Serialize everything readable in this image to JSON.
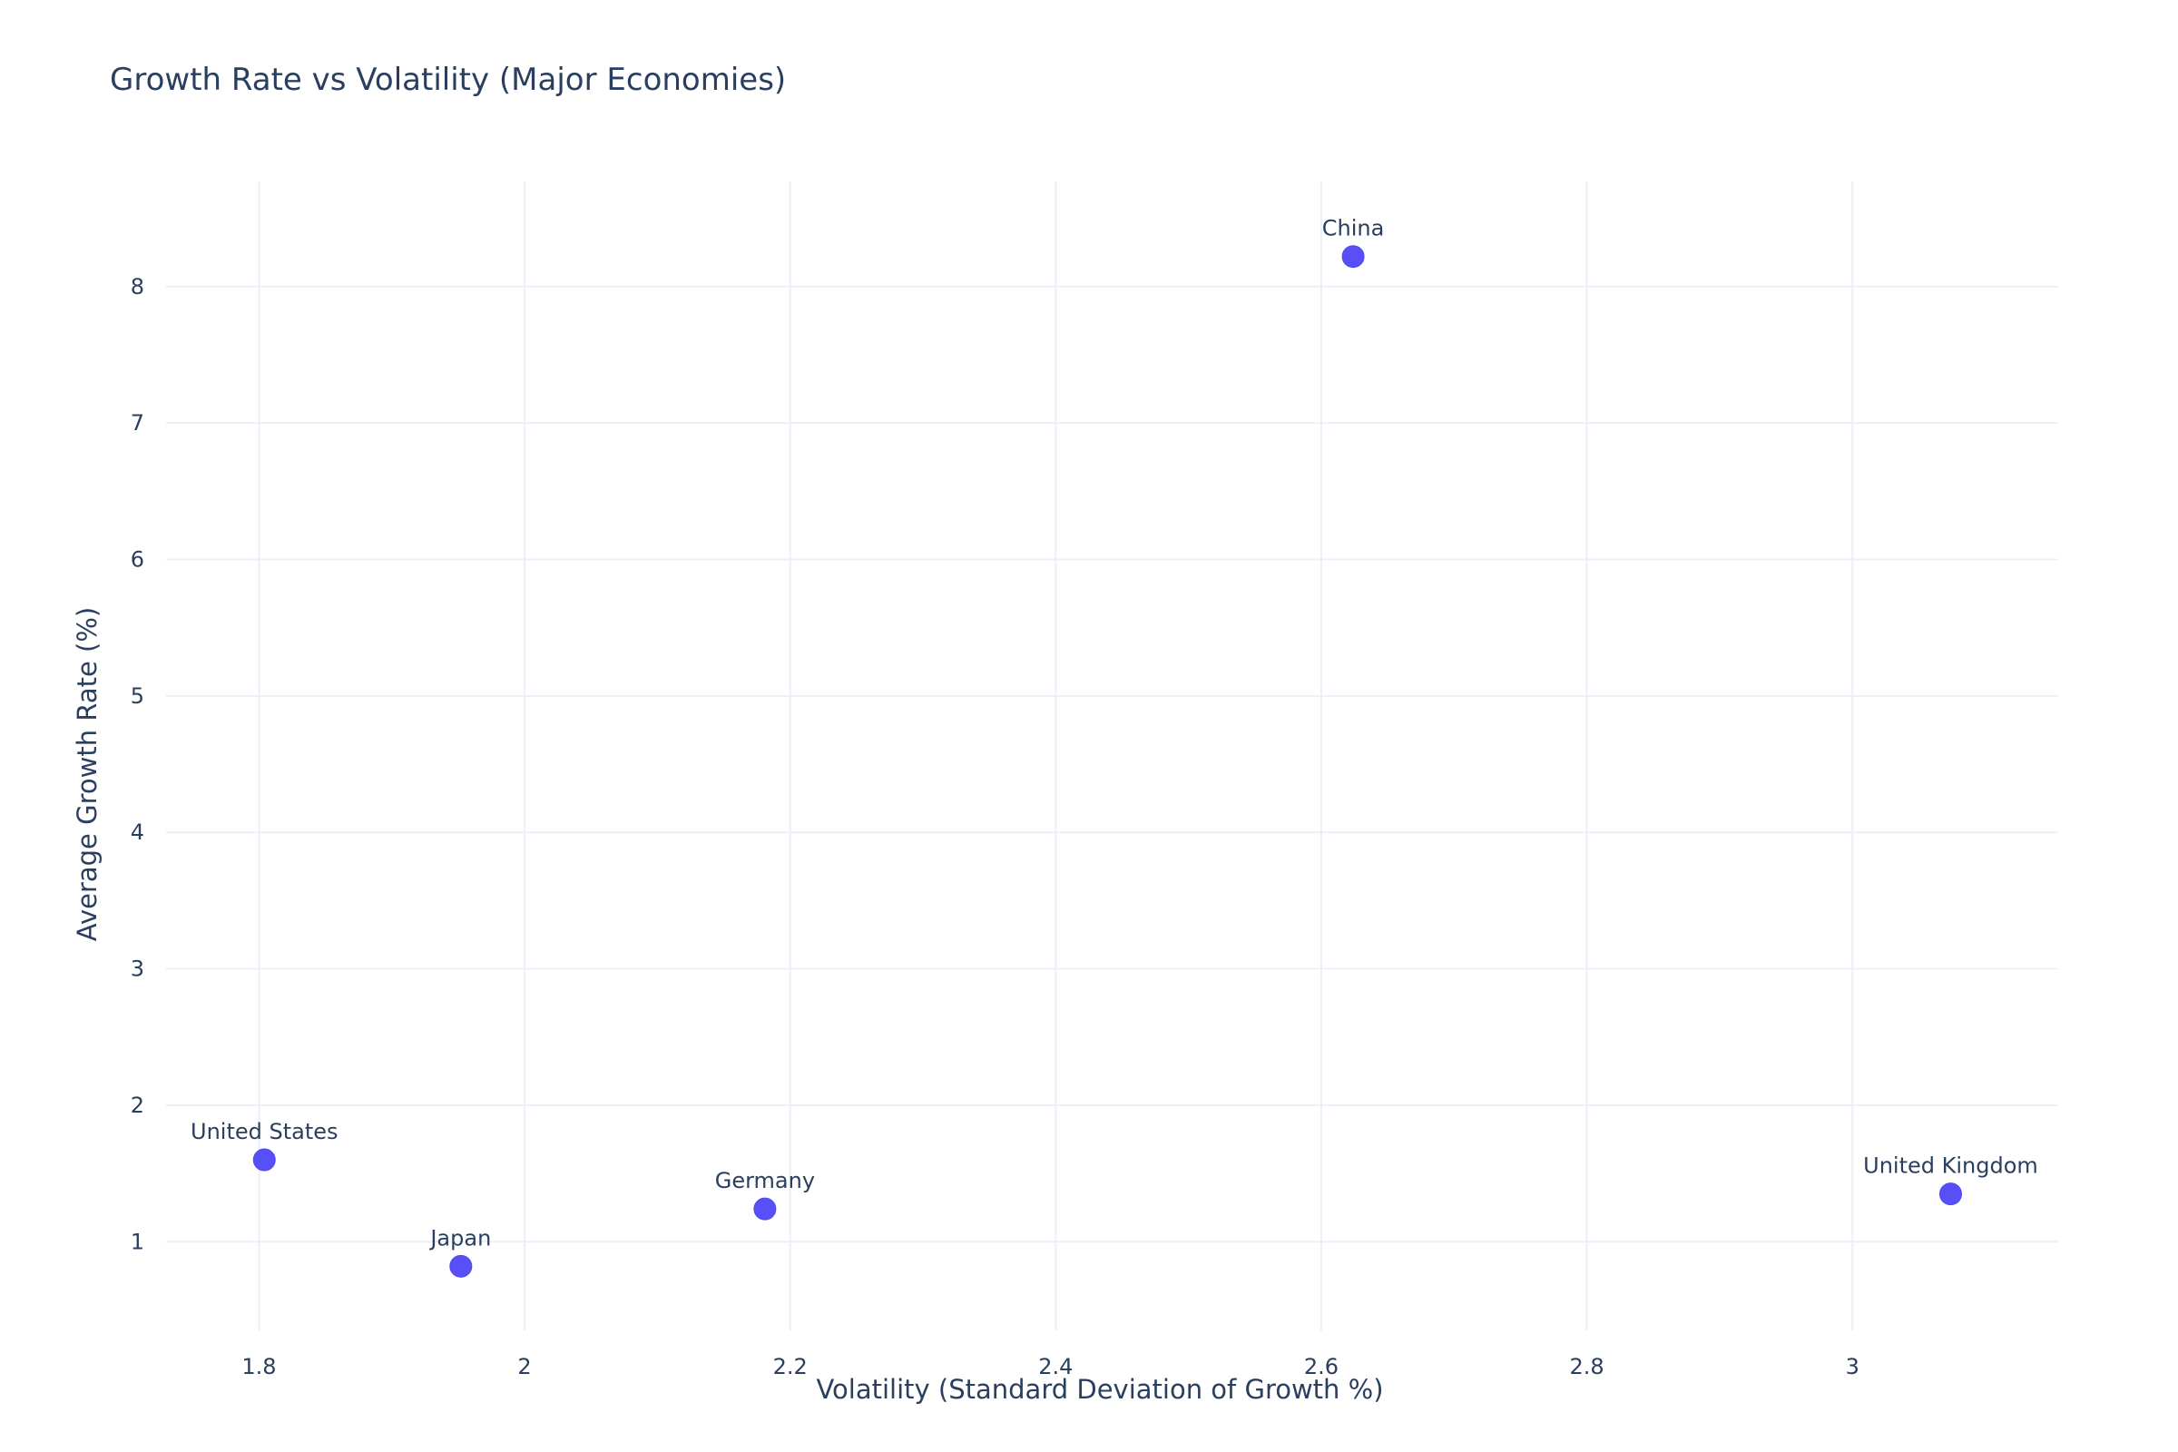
{
  "chart_data": {
    "type": "scatter",
    "title": "Growth Rate vs Volatility (Major Economies)",
    "xlabel": "Volatility (Standard Deviation of Growth %)",
    "ylabel": "Average Growth Rate (%)",
    "xlim": [
      1.73,
      3.155
    ],
    "ylim": [
      0.35,
      8.77
    ],
    "x_ticks": [
      1.8,
      2,
      2.2,
      2.4,
      2.6,
      2.8,
      3
    ],
    "x_tick_labels": [
      "1.8",
      "2",
      "2.2",
      "2.4",
      "2.6",
      "2.8",
      "3"
    ],
    "y_ticks": [
      1,
      2,
      3,
      4,
      5,
      6,
      7,
      8
    ],
    "y_tick_labels": [
      "1",
      "2",
      "3",
      "4",
      "5",
      "6",
      "7",
      "8"
    ],
    "grid": true,
    "marker_color": "#4f46f5",
    "points": [
      {
        "label": "United States",
        "x": 1.804,
        "y": 1.6
      },
      {
        "label": "Japan",
        "x": 1.952,
        "y": 0.82
      },
      {
        "label": "Germany",
        "x": 2.181,
        "y": 1.24
      },
      {
        "label": "China",
        "x": 2.624,
        "y": 8.22
      },
      {
        "label": "United Kingdom",
        "x": 3.074,
        "y": 1.35
      }
    ]
  }
}
